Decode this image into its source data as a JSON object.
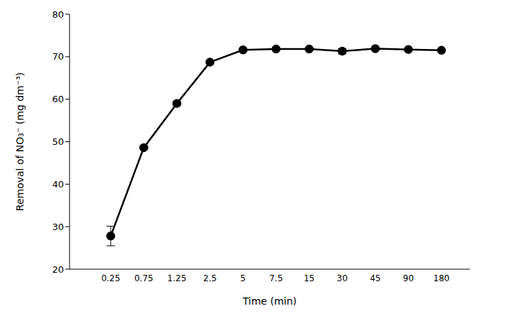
{
  "chart_data": {
    "type": "line",
    "x_label": "Time (min)",
    "y_label": "Removal of NO₃⁻ (mg dm⁻³)",
    "categories": [
      "0.25",
      "0.75",
      "1.25",
      "2.5",
      "5",
      "7.5",
      "15",
      "30",
      "45",
      "90",
      "180"
    ],
    "values": [
      27.8,
      48.6,
      59.0,
      68.7,
      71.6,
      71.8,
      71.8,
      71.3,
      71.9,
      71.7,
      71.5
    ],
    "errors": [
      2.3,
      0.3,
      0.4,
      0.3,
      0.2,
      0.2,
      0.2,
      0.6,
      0.2,
      0.2,
      0.2
    ],
    "color": "#000000",
    "marker": "circle",
    "line_style": "solid",
    "ylim": [
      20,
      80
    ],
    "yticks": [
      20,
      30,
      40,
      50,
      60,
      70,
      80
    ],
    "grid": false
  }
}
